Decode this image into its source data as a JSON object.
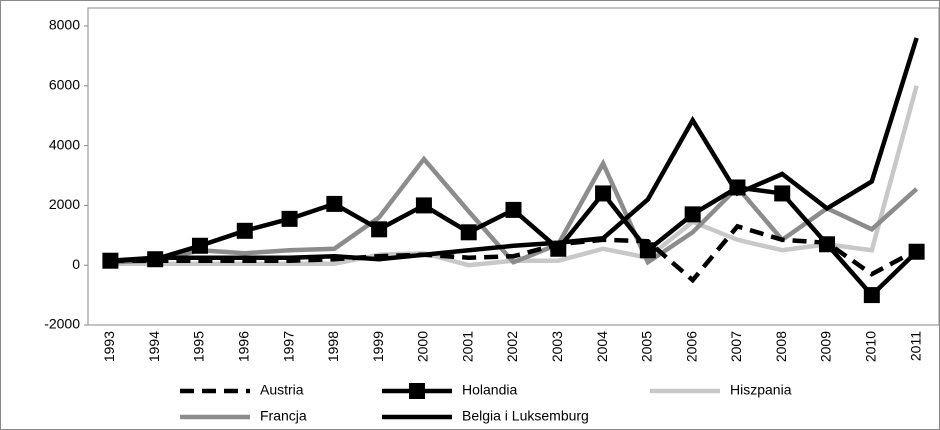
{
  "chart_data": {
    "type": "line",
    "categories": [
      "1993",
      "1994",
      "1995",
      "1996",
      "1997",
      "1998",
      "1999",
      "2000",
      "2001",
      "2002",
      "2003",
      "2004",
      "2005",
      "2006",
      "2007",
      "2008",
      "2009",
      "2010",
      "2011"
    ],
    "ylim": [
      -2000,
      8000
    ],
    "yticks": [
      -2000,
      0,
      2000,
      4000,
      6000,
      8000
    ],
    "series": [
      {
        "name": "Austria",
        "color": "#000000",
        "dashed": true,
        "values": [
          150,
          150,
          150,
          150,
          150,
          200,
          300,
          350,
          250,
          300,
          700,
          850,
          800,
          -500,
          1300,
          850,
          750,
          -300,
          500
        ]
      },
      {
        "name": "Holandia",
        "color": "#000000",
        "marker": "square",
        "values": [
          150,
          200,
          650,
          1150,
          1550,
          2050,
          1200,
          2000,
          1100,
          1850,
          550,
          2400,
          500,
          1700,
          2600,
          2400,
          700,
          -1000,
          450
        ]
      },
      {
        "name": "Hiszpania",
        "color": "#c8c8c8",
        "values": [
          50,
          50,
          50,
          50,
          50,
          50,
          350,
          400,
          0,
          150,
          150,
          550,
          250,
          1450,
          850,
          500,
          700,
          500,
          6000
        ]
      },
      {
        "name": "Francja",
        "color": "#8c8c8c",
        "values": [
          100,
          150,
          500,
          400,
          500,
          550,
          1600,
          3550,
          1800,
          100,
          700,
          3400,
          100,
          1100,
          2600,
          850,
          1900,
          1200,
          2550
        ]
      },
      {
        "name": "Belgia i Luksemburg",
        "color": "#000000",
        "values": [
          150,
          250,
          250,
          250,
          250,
          300,
          200,
          350,
          500,
          650,
          750,
          900,
          2200,
          4850,
          2400,
          3050,
          1900,
          2800,
          7600
        ]
      }
    ]
  }
}
